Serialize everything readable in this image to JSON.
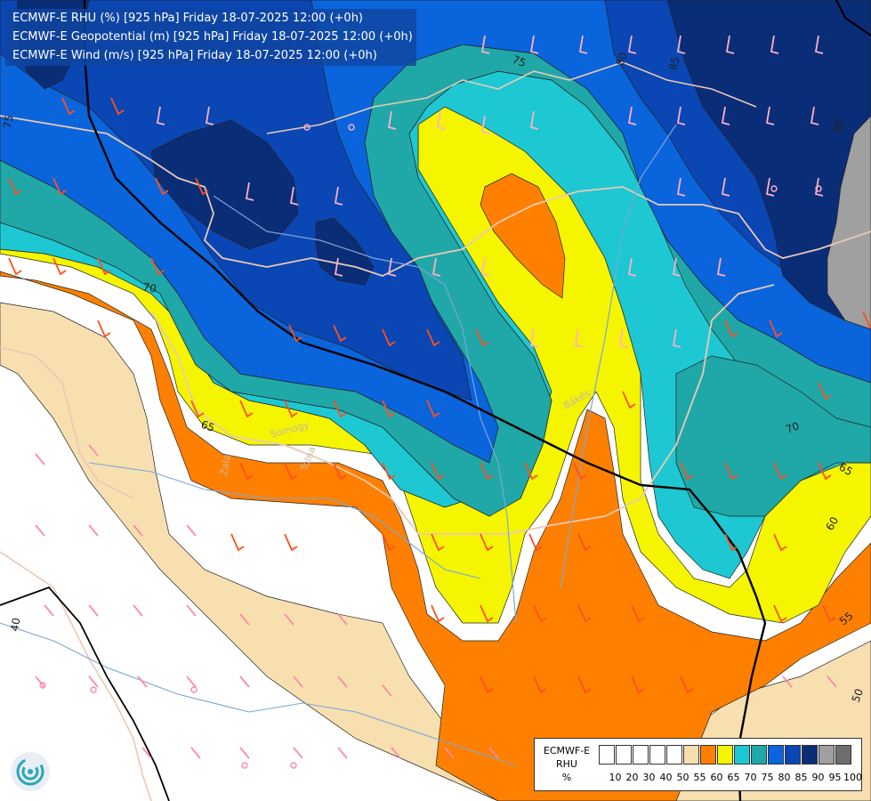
{
  "header": {
    "lines": [
      "ECMWF-E RHU (%) [925 hPa] Friday 18-07-2025 12:00 (+0h)",
      "ECMWF-E Geopotential (m) [925 hPa] Friday 18-07-2025 12:00 (+0h)",
      "ECMWF-E Wind (m/s) [925 hPa] Friday 18-07-2025 12:00 (+0h)"
    ]
  },
  "legend": {
    "model": "ECMWF-E",
    "variable": "RHU",
    "unit": "%",
    "thresholds": [
      "10",
      "20",
      "30",
      "40",
      "50",
      "55",
      "60",
      "65",
      "70",
      "75",
      "80",
      "85",
      "90",
      "95",
      "100"
    ],
    "colors": [
      "#ffffff",
      "#ffffff",
      "#ffffff",
      "#ffffff",
      "#ffffff",
      "#f7dfb0",
      "#ff8000",
      "#f5f500",
      "#1ec8d2",
      "#20a8a8",
      "#0a64dc",
      "#0a46b4",
      "#0a2d78",
      "#a0a0a0",
      "#6e6e6e"
    ]
  },
  "contour_labels": [
    "75",
    "70",
    "65",
    "60",
    "55",
    "50",
    "40",
    "80",
    "85",
    "90"
  ],
  "place_labels": [
    "Bákés",
    "Zala",
    "Tolna",
    "Somogy"
  ],
  "colors": {
    "rhu_50_55": "#f7dfb0",
    "rhu_55_60": "#ff8000",
    "rhu_60_65": "#f5f500",
    "rhu_65_70": "#1ec8d2",
    "rhu_70_75": "#20a8a8",
    "rhu_75_80": "#0a64dc",
    "rhu_80_85": "#0a46b4",
    "rhu_85_90": "#0a2d78",
    "rhu_90_95": "#a0a0a0",
    "wind_barb_moist": "#ff8080",
    "wind_barb_orange": "#ff5020",
    "wind_barb_blue": "#ffb0c8"
  }
}
